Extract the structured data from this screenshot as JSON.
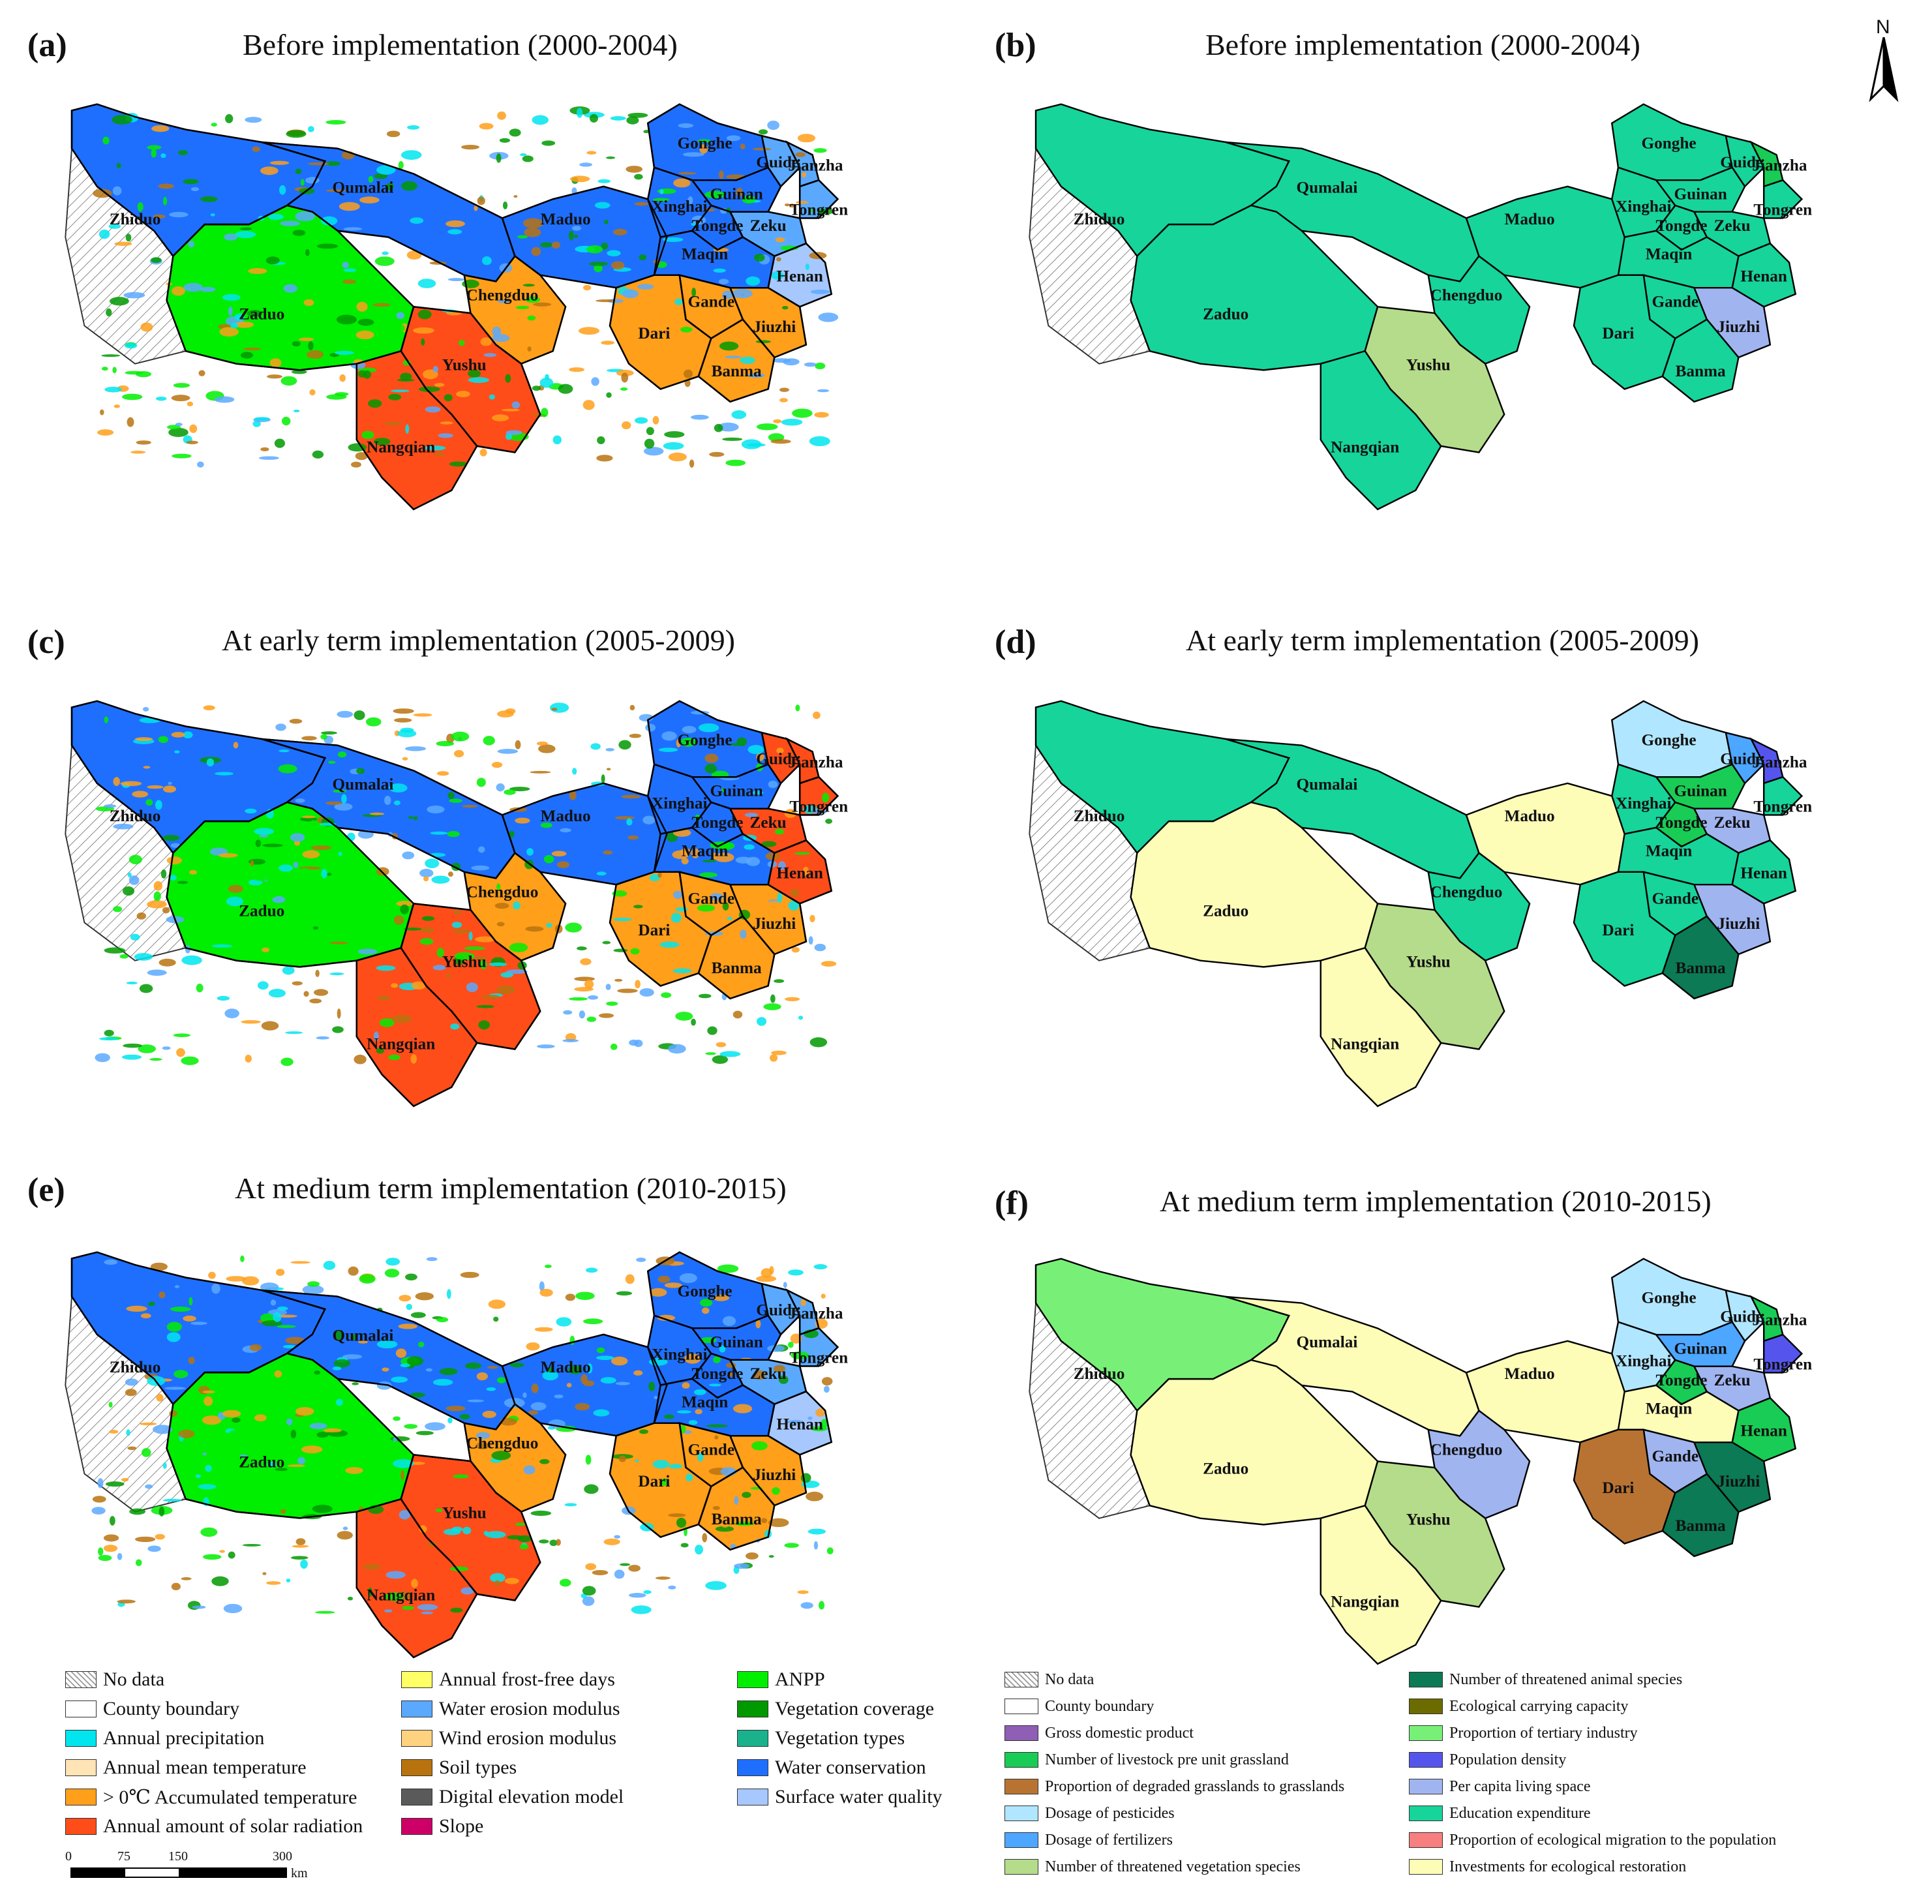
{
  "panels": [
    {
      "id": "a",
      "letter": "(a)",
      "title": "Before implementation (2000-2004)"
    },
    {
      "id": "b",
      "letter": "(b)",
      "title": "Before implementation (2000-2004)"
    },
    {
      "id": "c",
      "letter": "(c)",
      "title": "At early term implementation (2005-2009)"
    },
    {
      "id": "d",
      "letter": "(d)",
      "title": "At early term implementation (2005-2009)"
    },
    {
      "id": "e",
      "letter": "(e)",
      "title": "At medium term implementation (2010-2015)"
    },
    {
      "id": "f",
      "letter": "(f)",
      "title": "At medium term implementation (2010-2015)"
    }
  ],
  "counties": [
    "Zhiduo",
    "Qumalai",
    "Maduo",
    "Chengduo",
    "Zaduo",
    "Yushu",
    "Nangqian",
    "Gonghe",
    "Guide",
    "Jianzha",
    "Xinghai",
    "Guinan",
    "Tongren",
    "Tongde",
    "Zeku",
    "Henan",
    "Maqin",
    "Gande",
    "Dari",
    "Jiuzhi",
    "Banma"
  ],
  "north_arrow": "N",
  "scale": {
    "ticks": [
      "0",
      "75",
      "150",
      "300"
    ],
    "unit": "km"
  },
  "colors": {
    "no_data": "#ffffff",
    "county_boundary": "#ffffff",
    "annual_precipitation": "#00e5ee",
    "annual_mean_temperature": "#ffe4b5",
    "accumulated_temperature": "#ff9f1a",
    "solar_radiation": "#ff4d1a",
    "frost_free_days": "#ffff66",
    "water_erosion": "#5aa9ff",
    "wind_erosion": "#ffd27f",
    "soil_types": "#b8730f",
    "dem": "#5a5a5a",
    "slope": "#cc0066",
    "anpp": "#00ee00",
    "vegetation_coverage": "#009900",
    "vegetation_types": "#19b28c",
    "water_conservation": "#1f6fff",
    "surface_water_quality": "#a6c8ff",
    "gdp": "#8e5fb5",
    "livestock": "#19cc55",
    "degraded_grassland": "#b87333",
    "pesticides": "#b0e6ff",
    "fertilizers": "#4da6ff",
    "threatened_veg": "#b5dc8a",
    "threatened_animal": "#0b7a55",
    "carrying_capacity": "#6b6b00",
    "tertiary": "#78f078",
    "pop_density": "#5555ee",
    "living_space": "#a0b4f0",
    "education": "#16d49a",
    "eco_migration": "#f77f7f",
    "eco_restoration": "#fdfdb8"
  },
  "legend_left": [
    {
      "label": "No data",
      "swatch": "no_data"
    },
    {
      "label": "County boundary",
      "swatch": "county_boundary"
    },
    {
      "label": "Annual precipitation",
      "swatch": "annual_precipitation"
    },
    {
      "label": "Annual mean temperature",
      "swatch": "annual_mean_temperature"
    },
    {
      "label": "> 0℃ Accumulated temperature",
      "swatch": "accumulated_temperature"
    },
    {
      "label": "Annual amount of solar radiation",
      "swatch": "solar_radiation"
    },
    {
      "label": "Annual frost-free days",
      "swatch": "frost_free_days"
    },
    {
      "label": "Water erosion modulus",
      "swatch": "water_erosion"
    },
    {
      "label": "Wind erosion modulus",
      "swatch": "wind_erosion"
    },
    {
      "label": "Soil types",
      "swatch": "soil_types"
    },
    {
      "label": "Digital elevation model",
      "swatch": "dem"
    },
    {
      "label": "Slope",
      "swatch": "slope"
    },
    {
      "label": "ANPP",
      "swatch": "anpp"
    },
    {
      "label": "Vegetation coverage",
      "swatch": "vegetation_coverage"
    },
    {
      "label": "Vegetation types",
      "swatch": "vegetation_types"
    },
    {
      "label": "Water conservation",
      "swatch": "water_conservation"
    },
    {
      "label": "Surface water quality",
      "swatch": "surface_water_quality"
    }
  ],
  "legend_right": [
    {
      "label": "No data",
      "swatch": "no_data"
    },
    {
      "label": "County boundary",
      "swatch": "county_boundary"
    },
    {
      "label": "Gross domestic product",
      "swatch": "gdp"
    },
    {
      "label": "Number of livestock pre unit grassland",
      "swatch": "livestock"
    },
    {
      "label": "Proportion of degraded grasslands to grasslands",
      "swatch": "degraded_grassland"
    },
    {
      "label": "Dosage of pesticides",
      "swatch": "pesticides"
    },
    {
      "label": "Dosage of fertilizers",
      "swatch": "fertilizers"
    },
    {
      "label": "Number of threatened vegetation species",
      "swatch": "threatened_veg"
    },
    {
      "label": "Number of threatened animal species",
      "swatch": "threatened_animal"
    },
    {
      "label": "Ecological carrying capacity",
      "swatch": "carrying_capacity"
    },
    {
      "label": "Proportion of tertiary industry",
      "swatch": "tertiary"
    },
    {
      "label": "Population density",
      "swatch": "pop_density"
    },
    {
      "label": "Per capita living space",
      "swatch": "living_space"
    },
    {
      "label": "Education expenditure",
      "swatch": "education"
    },
    {
      "label": "Proportion of ecological migration to the population",
      "swatch": "eco_migration"
    },
    {
      "label": "Investments for ecological restoration",
      "swatch": "eco_restoration"
    }
  ],
  "county_fill": {
    "b": {
      "default": "education",
      "Yushu": "threatened_veg",
      "Jiuzhi": "living_space",
      "Jianzha": "livestock"
    },
    "d": {
      "default": "education",
      "Gonghe": "pesticides",
      "Guinan": "livestock",
      "Tongde": "livestock",
      "Zeku": "living_space",
      "Jiuzhi": "living_space",
      "Banma": "threatened_animal",
      "Maduo": "eco_restoration",
      "Zaduo": "eco_restoration",
      "Nangqian": "eco_restoration",
      "Yushu": "threatened_veg",
      "Jianzha": "pop_density",
      "Guide": "fertilizers"
    },
    "f": {
      "default": "tertiary",
      "Qumalai": "eco_restoration",
      "Zaduo": "eco_restoration",
      "Maduo": "eco_restoration",
      "Nangqian": "eco_restoration",
      "Chengduo": "living_space",
      "Yushu": "threatened_veg",
      "Gonghe": "pesticides",
      "Xinghai": "pesticides",
      "Guinan": "fertilizers",
      "Tongde": "livestock",
      "Zeku": "living_space",
      "Henan": "livestock",
      "Maqin": "eco_restoration",
      "Gande": "living_space",
      "Dari": "degraded_grassland",
      "Jiuzhi": "threatened_animal",
      "Banma": "threatened_animal",
      "Jianzha": "livestock",
      "Tongren": "pop_density",
      "Guide": "pesticides"
    }
  }
}
